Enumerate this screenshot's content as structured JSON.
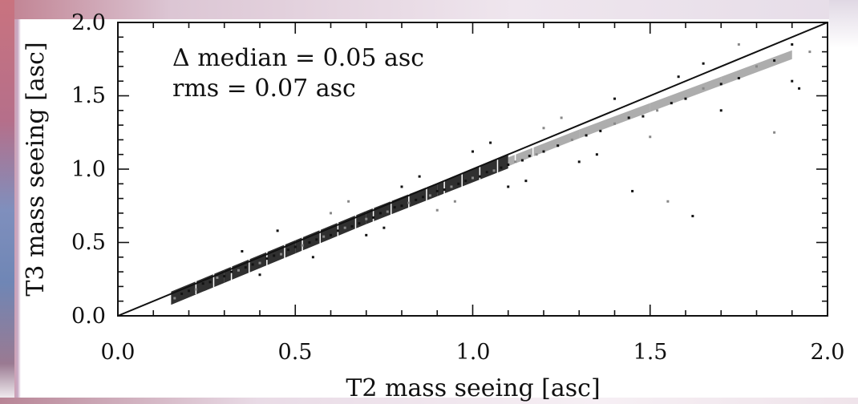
{
  "chart_data": {
    "type": "scatter",
    "title": "",
    "xlabel": "T2 mass seeing [asc]",
    "ylabel": "T3 mass seeing [asc]",
    "xlim": [
      0.0,
      2.0
    ],
    "ylim": [
      0.0,
      2.0
    ],
    "xticks": [
      "0.0",
      "0.5",
      "1.0",
      "1.5",
      "2.0"
    ],
    "yticks": [
      "0.0",
      "0.5",
      "1.0",
      "1.5",
      "2.0"
    ],
    "grid": false,
    "annotations": [
      "Δ median = 0.05 asc",
      "rms = 0.07 asc"
    ],
    "reference_line": {
      "type": "identity",
      "from": [
        0.0,
        0.0
      ],
      "to": [
        2.0,
        2.0
      ]
    },
    "density_trend": {
      "x": [
        0.15,
        0.3,
        0.5,
        0.7,
        0.9,
        1.1,
        1.3,
        1.5,
        1.7,
        1.9
      ],
      "y": [
        0.12,
        0.27,
        0.47,
        0.67,
        0.86,
        1.05,
        1.24,
        1.42,
        1.6,
        1.78
      ]
    },
    "points": [
      [
        0.16,
        0.12
      ],
      [
        0.18,
        0.15
      ],
      [
        0.2,
        0.17
      ],
      [
        0.22,
        0.18
      ],
      [
        0.24,
        0.22
      ],
      [
        0.26,
        0.23
      ],
      [
        0.28,
        0.26
      ],
      [
        0.3,
        0.27
      ],
      [
        0.32,
        0.3
      ],
      [
        0.34,
        0.31
      ],
      [
        0.36,
        0.33
      ],
      [
        0.38,
        0.35
      ],
      [
        0.4,
        0.36
      ],
      [
        0.42,
        0.39
      ],
      [
        0.44,
        0.41
      ],
      [
        0.46,
        0.42
      ],
      [
        0.48,
        0.45
      ],
      [
        0.5,
        0.47
      ],
      [
        0.52,
        0.48
      ],
      [
        0.54,
        0.5
      ],
      [
        0.56,
        0.52
      ],
      [
        0.58,
        0.54
      ],
      [
        0.6,
        0.55
      ],
      [
        0.62,
        0.58
      ],
      [
        0.64,
        0.6
      ],
      [
        0.66,
        0.61
      ],
      [
        0.68,
        0.63
      ],
      [
        0.7,
        0.66
      ],
      [
        0.72,
        0.67
      ],
      [
        0.74,
        0.7
      ],
      [
        0.76,
        0.71
      ],
      [
        0.78,
        0.74
      ],
      [
        0.8,
        0.75
      ],
      [
        0.82,
        0.77
      ],
      [
        0.84,
        0.79
      ],
      [
        0.86,
        0.81
      ],
      [
        0.88,
        0.82
      ],
      [
        0.9,
        0.85
      ],
      [
        0.92,
        0.86
      ],
      [
        0.94,
        0.88
      ],
      [
        0.96,
        0.9
      ],
      [
        0.98,
        0.92
      ],
      [
        1.0,
        0.94
      ],
      [
        1.02,
        0.95
      ],
      [
        1.04,
        0.98
      ],
      [
        1.06,
        0.99
      ],
      [
        1.08,
        1.01
      ],
      [
        1.1,
        1.03
      ],
      [
        1.12,
        1.05
      ],
      [
        1.14,
        1.06
      ],
      [
        1.16,
        1.09
      ],
      [
        1.18,
        1.1
      ],
      [
        1.2,
        1.12
      ],
      [
        1.24,
        1.16
      ],
      [
        1.28,
        1.2
      ],
      [
        1.32,
        1.23
      ],
      [
        1.36,
        1.26
      ],
      [
        1.4,
        1.31
      ],
      [
        1.44,
        1.35
      ],
      [
        1.48,
        1.36
      ],
      [
        1.52,
        1.4
      ],
      [
        1.56,
        1.45
      ],
      [
        1.6,
        1.48
      ],
      [
        1.65,
        1.55
      ],
      [
        1.7,
        1.58
      ],
      [
        1.75,
        1.62
      ],
      [
        1.8,
        1.7
      ],
      [
        1.85,
        1.74
      ],
      [
        1.9,
        1.85
      ],
      [
        1.95,
        1.8
      ],
      [
        0.45,
        0.58
      ],
      [
        0.55,
        0.4
      ],
      [
        0.65,
        0.78
      ],
      [
        0.75,
        0.6
      ],
      [
        0.85,
        0.95
      ],
      [
        0.95,
        0.78
      ],
      [
        1.05,
        1.18
      ],
      [
        1.15,
        0.92
      ],
      [
        1.25,
        1.35
      ],
      [
        1.35,
        1.1
      ],
      [
        1.45,
        0.85
      ],
      [
        1.55,
        0.78
      ],
      [
        1.65,
        1.72
      ],
      [
        1.62,
        0.68
      ],
      [
        1.85,
        1.25
      ],
      [
        1.92,
        1.55
      ],
      [
        0.35,
        0.44
      ],
      [
        0.6,
        0.7
      ],
      [
        0.8,
        0.88
      ],
      [
        1.0,
        1.12
      ],
      [
        1.2,
        1.28
      ],
      [
        1.4,
        1.48
      ],
      [
        1.58,
        1.63
      ],
      [
        1.75,
        1.85
      ],
      [
        0.4,
        0.28
      ],
      [
        0.7,
        0.55
      ],
      [
        0.9,
        0.72
      ],
      [
        1.1,
        0.88
      ],
      [
        1.3,
        1.05
      ],
      [
        1.5,
        1.22
      ],
      [
        1.7,
        1.4
      ],
      [
        1.9,
        1.6
      ]
    ]
  }
}
